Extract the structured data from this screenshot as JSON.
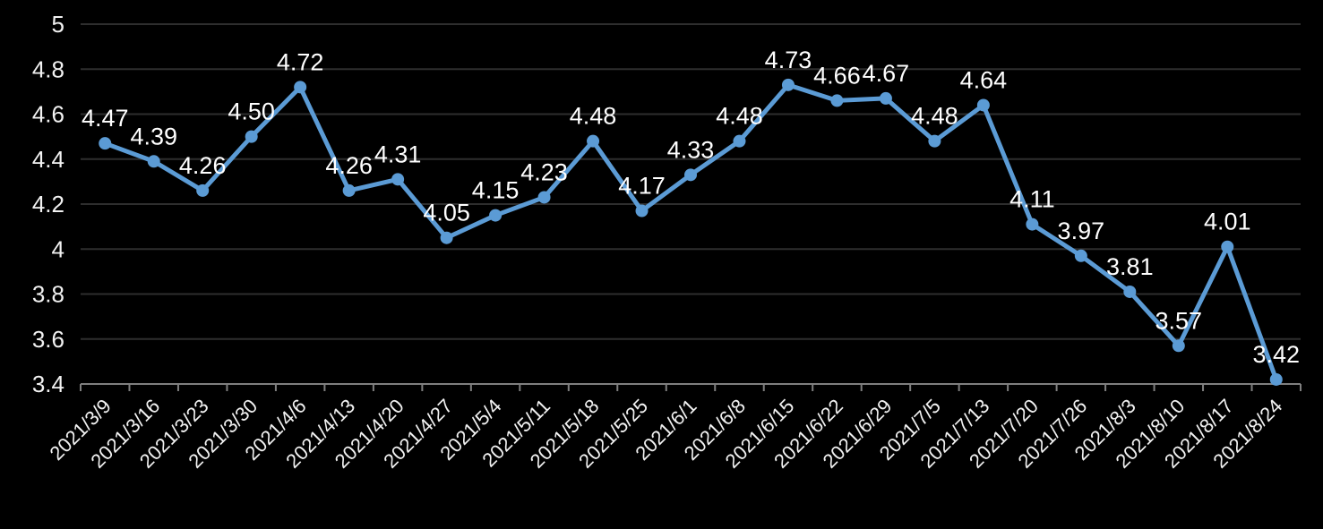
{
  "chart_data": {
    "type": "line",
    "title": "",
    "xlabel": "",
    "ylabel": "",
    "categories": [
      "2021/3/9",
      "2021/3/16",
      "2021/3/23",
      "2021/3/30",
      "2021/4/6",
      "2021/4/13",
      "2021/4/20",
      "2021/4/27",
      "2021/5/4",
      "2021/5/11",
      "2021/5/18",
      "2021/5/25",
      "2021/6/1",
      "2021/6/8",
      "2021/6/15",
      "2021/6/22",
      "2021/6/29",
      "2021/7/5",
      "2021/7/13",
      "2021/7/20",
      "2021/7/26",
      "2021/8/3",
      "2021/8/10",
      "2021/8/17",
      "2021/8/24"
    ],
    "series": [
      {
        "name": "value",
        "values": [
          4.47,
          4.39,
          4.26,
          4.5,
          4.72,
          4.26,
          4.31,
          4.05,
          4.15,
          4.23,
          4.48,
          4.17,
          4.33,
          4.48,
          4.73,
          4.66,
          4.67,
          4.48,
          4.64,
          4.11,
          3.97,
          3.81,
          3.57,
          4.01,
          3.42
        ]
      }
    ],
    "data_labels": [
      "4.47",
      "4.39",
      "4.26",
      "4.50",
      "4.72",
      "4.26",
      "4.31",
      "4.05",
      "4.15",
      "4.23",
      "4.48",
      "4.17",
      "4.33",
      "4.48",
      "4.73",
      "4.66",
      "4.67",
      "4.48",
      "4.64",
      "4.11",
      "3.97",
      "3.81",
      "3.57",
      "4.01",
      "3.42"
    ],
    "ylim": [
      3.4,
      5
    ],
    "yticks": [
      5,
      4.8,
      4.6,
      4.4,
      4.2,
      4,
      3.8,
      3.6,
      3.4
    ],
    "ytick_labels": [
      "5",
      "4.8",
      "4.6",
      "4.4",
      "4.2",
      "4",
      "3.8",
      "3.6",
      "3.4"
    ],
    "grid": "horizontal",
    "legend_position": "none",
    "x_label_rotation_deg": 45
  },
  "colors": {
    "background": "#000000",
    "line": "#5B9BD5",
    "marker": "#5B9BD5",
    "gridline": "#2e2e2e",
    "axis": "#7f7f7f",
    "data_label_text": "#ffffff",
    "tick_label_text": "#f2f2f2"
  }
}
